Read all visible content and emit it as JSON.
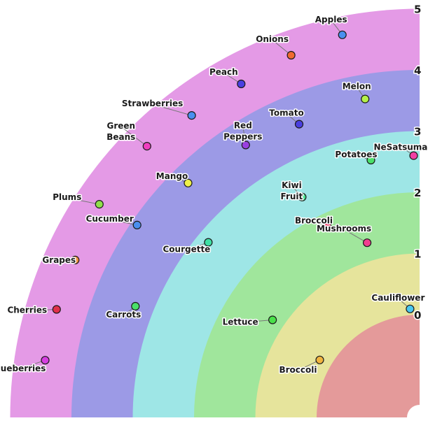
{
  "chart_data": {
    "type": "scatter",
    "radial_axis": {
      "ticks": [
        "0",
        "1",
        "2",
        "3",
        "4",
        "5"
      ],
      "range": [
        0,
        5
      ]
    },
    "band_colors": [
      "#e49a9a",
      "#e6e49c",
      "#a0e69c",
      "#9ee6e6",
      "#9c9ae6",
      "#e49ae6"
    ],
    "points": [
      {
        "label": "Apples",
        "r": 4.7,
        "angle": 78.6,
        "color": "#4a8fef"
      },
      {
        "label": "Onions",
        "r": 4.6,
        "angle": 70.5,
        "color": "#f06a30"
      },
      {
        "label": "Peach",
        "r": 4.5,
        "angle": 61.9,
        "color": "#4a3fe0"
      },
      {
        "label": "Strawberries",
        "r": 4.5,
        "angle": 53.0,
        "color": "#4a8fef"
      },
      {
        "label": "Green Beans",
        "r": 4.6,
        "angle": 44.9,
        "color": "#f03fbf"
      },
      {
        "label": "Plums",
        "r": 4.6,
        "angle": 33.7,
        "color": "#8fe04a"
      },
      {
        "label": "Cucumber",
        "r": 3.9,
        "angle": 34.3,
        "color": "#4a8fef"
      },
      {
        "label": "Mango",
        "r": 3.7,
        "angle": 45.4,
        "color": "#eef04a"
      },
      {
        "label": "Red Peppers",
        "r": 3.6,
        "angle": 57.5,
        "color": "#9a3fe0"
      },
      {
        "label": "Tomato",
        "r": 3.5,
        "angle": 67.7,
        "color": "#4a3fe0"
      },
      {
        "label": "Melon",
        "r": 3.6,
        "angle": 80.3,
        "color": "#b4f04a"
      },
      {
        "label": "Grapes",
        "r": 4.5,
        "angle": 24.6,
        "color": "#f0903f"
      },
      {
        "label": "Cherries",
        "r": 4.5,
        "angle": 16.6,
        "color": "#e0304a"
      },
      {
        "label": "Blueberries",
        "r": 4.5,
        "angle": 8.7,
        "color": "#d53fe0"
      },
      {
        "label": "Carrots",
        "r": 3.3,
        "angle": 21.4,
        "color": "#4ae06a"
      },
      {
        "label": "Courgette",
        "r": 2.8,
        "angle": 39.7,
        "color": "#3fe0a4"
      },
      {
        "label": "Kiwi Fruit",
        "r": 2.4,
        "angle": 62.0,
        "color": "#4ae090"
      },
      {
        "label": "Potatoes",
        "r": 2.6,
        "angle": 79.3,
        "color": "#4ae06a"
      },
      {
        "label": "NeSatsumas",
        "r": 2.6,
        "angle": 88.7,
        "color": "#f03fa4"
      },
      {
        "label": "Broccoli",
        "r": 1.8,
        "angle": 64.3,
        "color": "#f03f6a"
      },
      {
        "label": "Mushrooms",
        "r": 1.3,
        "angle": 73.3,
        "color": "#f03f90"
      },
      {
        "label": "Lettuce",
        "r": 1.2,
        "angle": 33.6,
        "color": "#4ae04a"
      },
      {
        "label": "Cauliflower",
        "r": 0.1,
        "angle": 85,
        "color": "#4ac8f0"
      },
      {
        "label": "Broccoli",
        "r": 0.2,
        "angle": 30,
        "color": "#f0b43f"
      }
    ]
  }
}
